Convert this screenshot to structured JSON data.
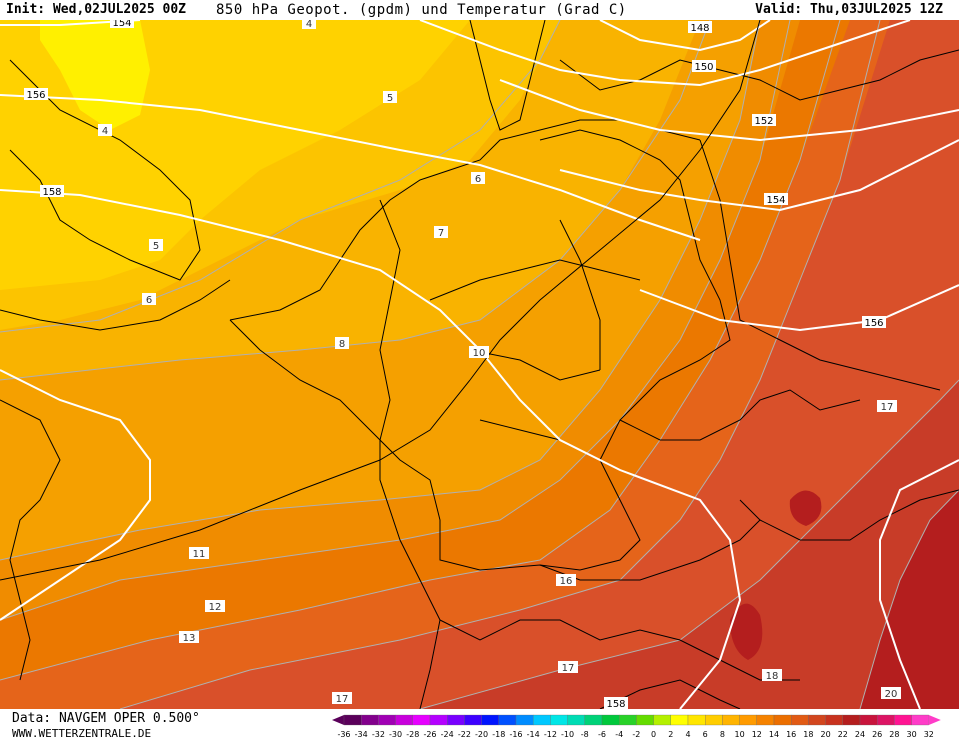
{
  "header": {
    "init": "Init: Wed,02JUL2025 00Z",
    "title": "850 hPa Geopot. (gpdm) und Temperatur (Grad C)",
    "valid": "Valid: Thu,03JUL2025 12Z"
  },
  "footer": {
    "data_source": "Data: NAVGEM OPER 0.500°",
    "website": "WWW.WETTERZENTRALE.DE"
  },
  "legend": {
    "values": [
      "-36",
      "-34",
      "-32",
      "-30",
      "-28",
      "-26",
      "-24",
      "-22",
      "-20",
      "-18",
      "-16",
      "-14",
      "-12",
      "-10",
      "-8",
      "-6",
      "-4",
      "-2",
      "0",
      "2",
      "4",
      "6",
      "8",
      "10",
      "12",
      "14",
      "16",
      "18",
      "20",
      "22",
      "24",
      "26",
      "28",
      "30",
      "32"
    ],
    "colors": [
      "#5a005a",
      "#82008c",
      "#a000b4",
      "#c800dc",
      "#e600ff",
      "#b400ff",
      "#7800ff",
      "#3c00ff",
      "#0014ff",
      "#0050ff",
      "#008cff",
      "#00c8ff",
      "#00e6e6",
      "#00dcb4",
      "#00d278",
      "#00c83c",
      "#28d228",
      "#64dc00",
      "#b4f000",
      "#ffff00",
      "#ffe600",
      "#ffcd00",
      "#ffb400",
      "#ff9b00",
      "#f58200",
      "#eb6e00",
      "#e15a14",
      "#d2461e",
      "#c8321e",
      "#b41e1e",
      "#c8143c",
      "#dc1464",
      "#ff1493",
      "#ff3cc8"
    ]
  },
  "geopotential_labels": [
    "154",
    "156",
    "158",
    "148",
    "150",
    "152",
    "154",
    "156",
    "158"
  ],
  "temperature_labels": [
    "4",
    "4",
    "5",
    "5",
    "6",
    "6",
    "7",
    "8",
    "10",
    "11",
    "12",
    "13",
    "16",
    "17",
    "17",
    "17",
    "18",
    "20"
  ],
  "colors": {
    "t4": "#ffd200",
    "t5": "#fcc400",
    "t6": "#f9b300",
    "t8": "#f5a000",
    "t10": "#f08c00",
    "t12": "#eb7800",
    "t14": "#e5641a",
    "t16": "#d9502a",
    "t18": "#c83c28",
    "t20": "#b41e1e",
    "pale": "#fff000"
  }
}
